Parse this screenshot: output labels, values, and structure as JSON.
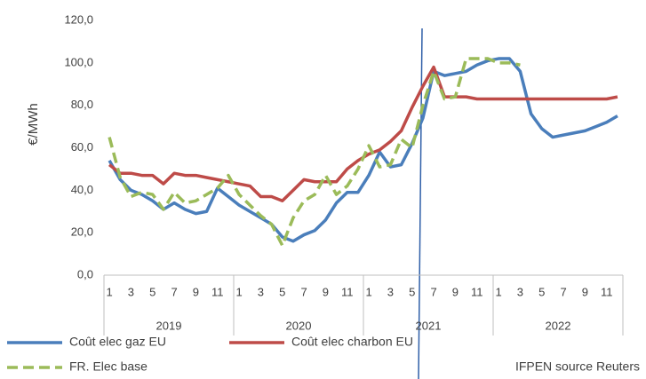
{
  "chart_data": {
    "type": "line",
    "y_label": "€/MWh",
    "note": "IFPEN source Reuters",
    "categories": [
      "1",
      null,
      "3",
      null,
      "5",
      null,
      "7",
      null,
      "9",
      null,
      "11",
      null,
      "1",
      null,
      "3",
      null,
      "5",
      null,
      "7",
      null,
      "9",
      null,
      "11",
      null,
      "1",
      null,
      "3",
      null,
      "5",
      null,
      "7",
      null,
      "9",
      null,
      "11",
      null,
      "1",
      null,
      "3",
      null,
      "5",
      null,
      "7",
      null,
      "9",
      null,
      "11",
      null
    ],
    "year_groups": [
      "2019",
      "2020",
      "2021",
      "2022"
    ],
    "ylim": [
      0,
      120
    ],
    "yticks": [
      {
        "value": 0,
        "label": "0,0"
      },
      {
        "value": 20,
        "label": "20,0"
      },
      {
        "value": 40,
        "label": "40,0"
      },
      {
        "value": 60,
        "label": "60,0"
      },
      {
        "value": 80,
        "label": "80,0"
      },
      {
        "value": 100,
        "label": "100,0"
      },
      {
        "value": 120,
        "label": "120,0"
      }
    ],
    "grid": false,
    "legend": "bottom",
    "series": [
      {
        "name": "Coût elec gaz EU",
        "color": "#4a7ebb",
        "dash": false,
        "values": [
          54,
          45,
          40,
          38,
          35,
          31,
          34,
          31,
          29,
          30,
          41,
          37,
          33,
          30,
          27,
          24,
          18,
          16,
          19,
          21,
          26,
          34,
          39,
          39,
          47,
          58,
          51,
          52,
          62,
          74,
          96,
          94,
          95,
          96,
          99,
          101,
          102,
          102,
          96,
          76,
          69,
          65,
          66,
          67,
          68,
          70,
          72,
          75
        ]
      },
      {
        "name": "Coût elec charbon EU",
        "color": "#be4b48",
        "dash": false,
        "values": [
          52,
          48,
          48,
          47,
          47,
          43,
          48,
          47,
          47,
          46,
          45,
          44,
          43,
          42,
          37,
          37,
          35,
          40,
          45,
          44,
          44,
          44,
          50,
          54,
          57,
          59,
          63,
          68,
          79,
          89,
          98,
          84,
          84,
          84,
          83,
          83,
          83,
          83,
          83,
          83,
          83,
          83,
          83,
          83,
          83,
          83,
          83,
          84
        ]
      },
      {
        "name": "FR. Elec  base",
        "color": "#9bbb59",
        "dash": true,
        "values": [
          65,
          46,
          37,
          39,
          38,
          31,
          39,
          34,
          35,
          38,
          41,
          47,
          38,
          33,
          28,
          24,
          14,
          27,
          35,
          38,
          47,
          38,
          42,
          50,
          61,
          51,
          52,
          64,
          60,
          80,
          96,
          83,
          84,
          102,
          102,
          102,
          100,
          100,
          99,
          null,
          null,
          null,
          null,
          null,
          null,
          null,
          null,
          null
        ]
      }
    ]
  }
}
